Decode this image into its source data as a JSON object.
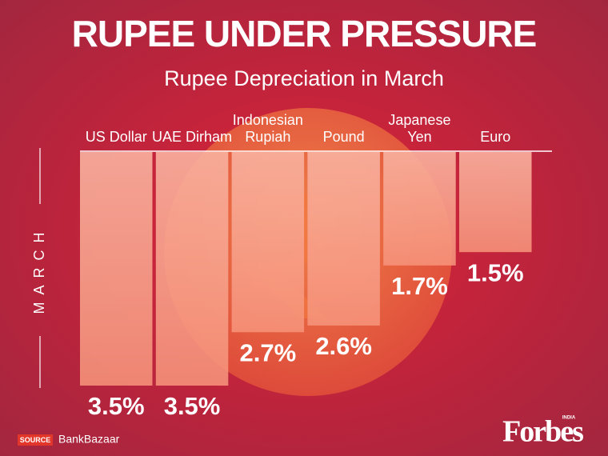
{
  "chart_data": {
    "type": "bar",
    "orientation": "down",
    "title": "RUPEE UNDER PRESSURE",
    "subtitle": "Rupee Depreciation in March",
    "y_label": "MARCH",
    "categories": [
      "US Dollar",
      "UAE Dirham",
      "Indonesian Rupiah",
      "Pound",
      "Japanese Yen",
      "Euro"
    ],
    "values": [
      3.5,
      3.5,
      2.7,
      2.6,
      1.7,
      1.5
    ],
    "value_labels": [
      "3.5%",
      "3.5%",
      "2.7%",
      "2.6%",
      "1.7%",
      "1.5%"
    ],
    "color": "#f6937a",
    "source_label": "SOURCE",
    "source": "BankBazaar",
    "logo": "Forbes",
    "logo_edition": "INDIA"
  }
}
